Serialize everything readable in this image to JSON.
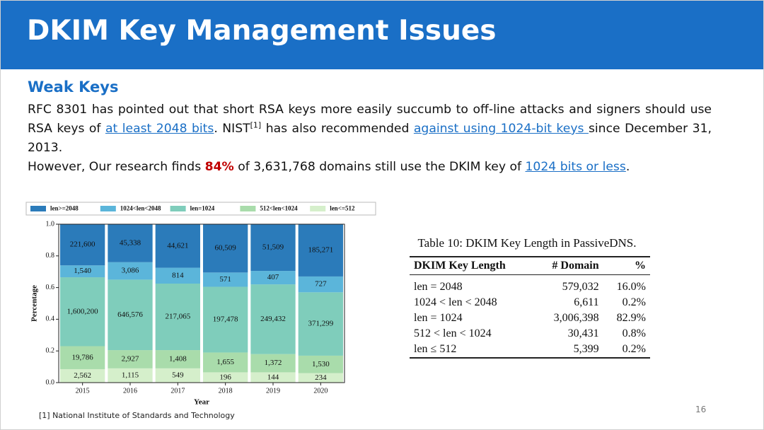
{
  "header": {
    "title": "DKIM Key Management Issues"
  },
  "section": {
    "heading": "Weak Keys"
  },
  "paragraphs": [
    [
      {
        "text": "RFC 8301 has pointed out that short RSA keys more easily succumb to off-line attacks and signers should use RSA keys of "
      },
      {
        "text": "at least 2048 bits",
        "style": "link"
      },
      {
        "text": ". NIST"
      },
      {
        "text": "[1]",
        "style": "sup"
      },
      {
        "text": " has also recommended "
      },
      {
        "text": "against using 1024-bit keys ",
        "style": "link"
      },
      {
        "text": "since December 31, 2013."
      }
    ],
    [
      {
        "text": "However, Our research finds "
      },
      {
        "text": "84%",
        "style": "highlight"
      },
      {
        "text": " of 3,631,768 domains still use the DKIM key of "
      },
      {
        "text": "1024 bits or less",
        "style": "link"
      },
      {
        "text": "."
      }
    ]
  ],
  "chart_data": {
    "type": "bar",
    "stacked": true,
    "xlabel": "Year",
    "ylabel": "Percentage",
    "legend": "top",
    "categories": [
      "2015",
      "2016",
      "2017",
      "2018",
      "2019",
      "2020"
    ],
    "ylim": [
      0,
      1.0
    ],
    "yticks": [
      {
        "value": 0,
        "label": "0.0"
      },
      0.2,
      0.4,
      0.6,
      0.8,
      {
        "value": 1,
        "label": "1.0"
      }
    ],
    "series": [
      {
        "name": "len>=2048",
        "color": "#2b7bba",
        "values": [
          0.26,
          0.24,
          0.275,
          0.305,
          0.295,
          0.33
        ],
        "counts": [
          "221,600",
          "45,338",
          "44,621",
          "60,509",
          "51,509",
          "185,271"
        ]
      },
      {
        "name": "1024<len<2048",
        "color": "#5bb5da",
        "values": [
          0.075,
          0.11,
          0.1,
          0.09,
          0.085,
          0.1
        ],
        "counts": [
          "1,540",
          "3,086",
          "814",
          "571",
          "407",
          "727"
        ]
      },
      {
        "name": "len=1024",
        "color": "#7fcdbb",
        "values": [
          0.435,
          0.445,
          0.42,
          0.415,
          0.44,
          0.4
        ],
        "counts": [
          "1,600,200",
          "646,576",
          "217,065",
          "197,478",
          "249,432",
          "371,299"
        ]
      },
      {
        "name": "512<len<1024",
        "color": "#a9dcab",
        "values": [
          0.145,
          0.115,
          0.115,
          0.125,
          0.115,
          0.11
        ],
        "counts": [
          "19,786",
          "2,927",
          "1,408",
          "1,655",
          "1,372",
          "1,530"
        ]
      },
      {
        "name": "len<=512",
        "color": "#d5efcb",
        "values": [
          0.085,
          0.09,
          0.09,
          0.065,
          0.065,
          0.06
        ],
        "counts": [
          "2,562",
          "1,115",
          "549",
          "196",
          "144",
          "234"
        ]
      }
    ]
  },
  "table": {
    "title": "Table 10: DKIM Key Length in PassiveDNS.",
    "columns": [
      "DKIM Key Length",
      "# Domain",
      "%"
    ],
    "rows": [
      [
        "len = 2048",
        "579,032",
        "16.0%"
      ],
      [
        "1024 < len < 2048",
        "6,611",
        "0.2%"
      ],
      [
        "len = 1024",
        "3,006,398",
        "82.9%"
      ],
      [
        "512 < len < 1024",
        "30,431",
        "0.8%"
      ],
      [
        "len ≤ 512",
        "5,399",
        "0.2%"
      ]
    ]
  },
  "footnote": "[1] National Institute of Standards and Technology",
  "page_number": "16"
}
